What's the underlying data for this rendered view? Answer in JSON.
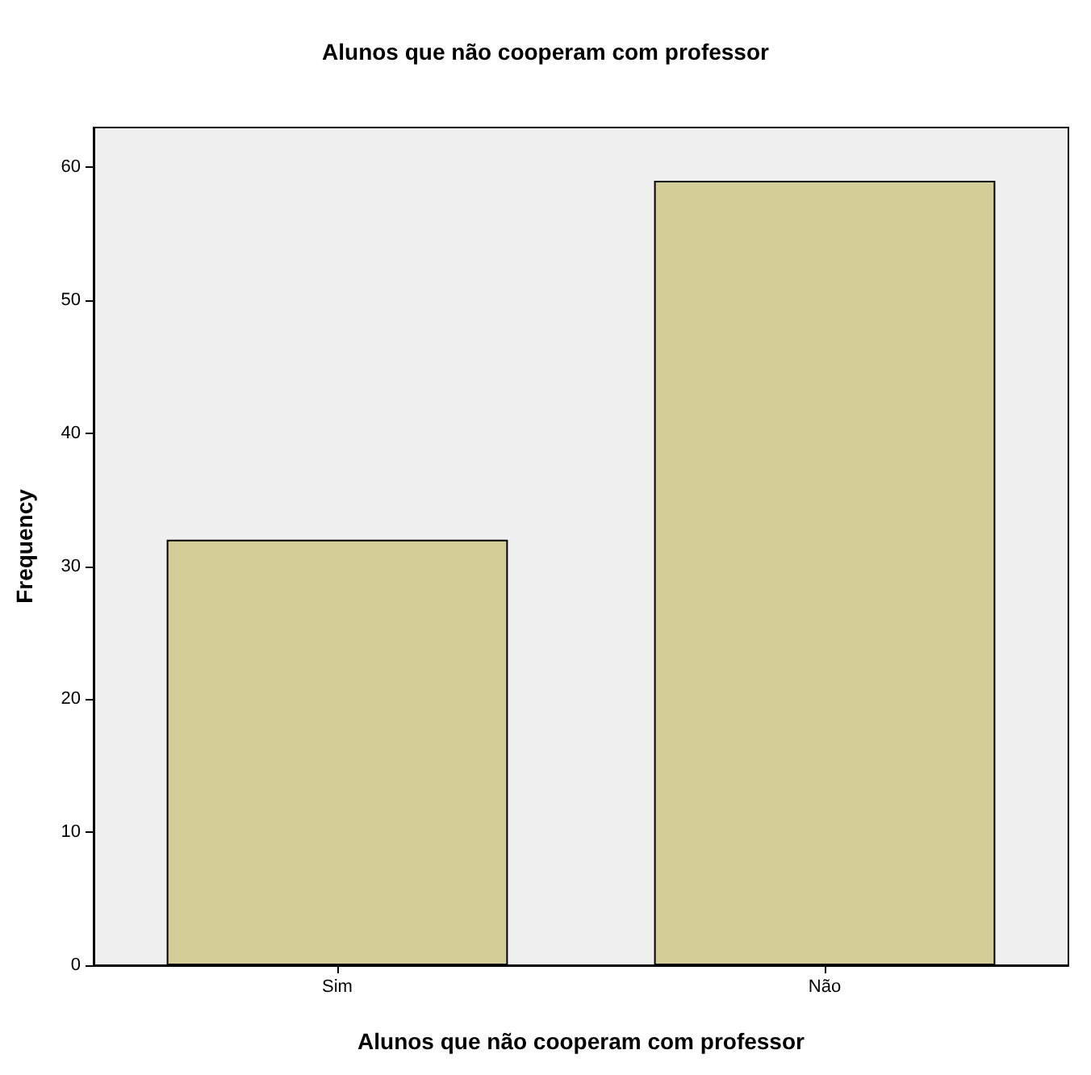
{
  "chart_data": {
    "type": "bar",
    "title": "Alunos que não cooperam com professor",
    "xlabel": "Alunos que não cooperam com professor",
    "ylabel": "Frequency",
    "categories": [
      "Sim",
      "Não"
    ],
    "values": [
      32,
      59
    ],
    "color": "#d3ce97",
    "ylim": [
      0,
      63
    ],
    "yticks": [
      0,
      10,
      20,
      30,
      40,
      50,
      60
    ],
    "grid": false
  }
}
